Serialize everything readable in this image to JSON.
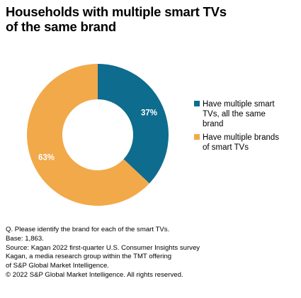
{
  "chart_data": {
    "type": "pie",
    "title": "Households with multiple smart TVs of the same brand",
    "series": [
      {
        "name": "Have multiple smart TVs, all the same brand",
        "value": 37,
        "label": "37%",
        "color": "#0e6c8e"
      },
      {
        "name": "Have multiple brands of smart TVs",
        "value": 63,
        "label": "63%",
        "color": "#f2a94a"
      }
    ],
    "legend_position": "right"
  },
  "title_lines": [
    "Households with multiple smart TVs",
    "of the same brand"
  ],
  "legend": [
    {
      "lines": [
        "Have multiple smart",
        "TVs, all the same",
        "brand"
      ]
    },
    {
      "lines": [
        "Have multiple brands",
        "of smart TVs"
      ]
    }
  ],
  "notes": [
    "Q. Please identify the brand for each of the smart TVs.",
    "Base: 1,863.",
    "Source: Kagan 2022 first-quarter U.S. Consumer Insights survey",
    "Kagan, a media research group within the TMT offering",
    "of S&P Global Market Intelligence.",
    "© 2022 S&P Global Market Intelligence.  All rights reserved."
  ]
}
